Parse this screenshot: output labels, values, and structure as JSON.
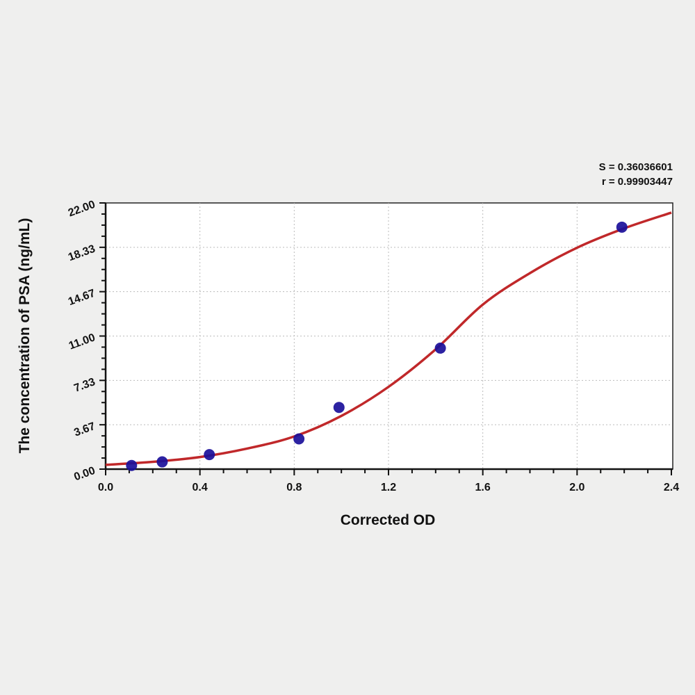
{
  "chart_data": {
    "type": "scatter",
    "xlabel": "Corrected OD",
    "ylabel": "The concentration of PSA (ng/mL)",
    "xlim": [
      0,
      2.4
    ],
    "ylim": [
      0,
      22
    ],
    "x_ticks": [
      "0.0",
      "0.4",
      "0.8",
      "1.2",
      "1.6",
      "2.0",
      "2.4"
    ],
    "y_ticks": [
      "0.00",
      "3.67",
      "7.33",
      "11.00",
      "14.67",
      "18.33",
      "22.00"
    ],
    "grid": true,
    "annotations": {
      "s": "S = 0.36036601",
      "r": "r = 0.99903447"
    },
    "points": {
      "x": [
        0.11,
        0.24,
        0.44,
        0.82,
        0.99,
        1.42,
        2.19
      ],
      "y": [
        0.3,
        0.6,
        1.2,
        2.5,
        5.1,
        10.0,
        20.0
      ],
      "color": "#1a0f9a"
    },
    "fit_curve": {
      "x": [
        0,
        0.2,
        0.4,
        0.6,
        0.8,
        1.0,
        1.2,
        1.4,
        1.6,
        1.8,
        2.0,
        2.2,
        2.4
      ],
      "y": [
        0.35,
        0.6,
        1.0,
        1.7,
        2.7,
        4.4,
        6.8,
        9.9,
        13.6,
        16.2,
        18.3,
        19.9,
        21.2
      ],
      "color": "#c0282a"
    }
  }
}
